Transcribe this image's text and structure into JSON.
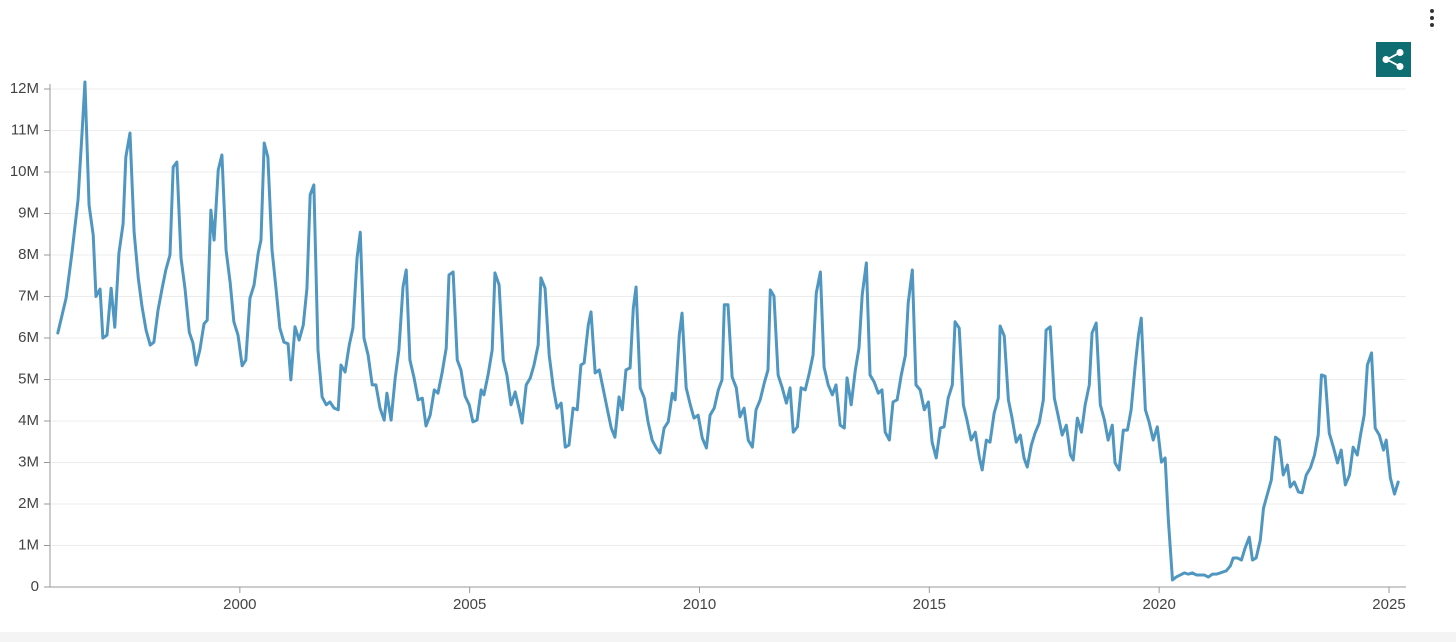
{
  "chart_data": {
    "type": "line",
    "color": "#4f97c0",
    "grid": true,
    "xlim": [
      1995.87,
      2025.37
    ],
    "xticks": [
      2000,
      2005,
      2010,
      2015,
      2020,
      2025
    ],
    "ylim": [
      0,
      12000000
    ],
    "yticks": [
      0,
      {
        "value": 1000000,
        "label": "1M"
      },
      {
        "value": 2000000,
        "label": "2M"
      },
      {
        "value": 3000000,
        "label": "3M"
      },
      {
        "value": 4000000,
        "label": "4M"
      },
      {
        "value": 5000000,
        "label": "5M"
      },
      {
        "value": 6000000,
        "label": "6M"
      },
      {
        "value": 7000000,
        "label": "7M"
      },
      {
        "value": 8000000,
        "label": "8M"
      },
      {
        "value": 9000000,
        "label": "9M"
      },
      {
        "value": 10000000,
        "label": "10M"
      },
      {
        "value": 11000000,
        "label": "11M"
      },
      {
        "value": 12000000,
        "label": "12M"
      }
    ],
    "x": [
      1996.04,
      1996.22,
      1996.35,
      1996.48,
      1996.57,
      1996.63,
      1996.72,
      1996.81,
      1996.87,
      1996.96,
      1997.02,
      1997.11,
      1997.2,
      1997.28,
      1997.37,
      1997.46,
      1997.52,
      1997.61,
      1997.7,
      1997.79,
      1997.87,
      1997.96,
      1998.05,
      1998.13,
      1998.22,
      1998.31,
      1998.39,
      1998.48,
      1998.55,
      1998.63,
      1998.72,
      1998.81,
      1998.9,
      1998.98,
      1999.05,
      1999.13,
      1999.22,
      1999.29,
      1999.37,
      1999.44,
      1999.53,
      1999.61,
      1999.7,
      1999.79,
      1999.87,
      1999.96,
      2000.05,
      2000.13,
      2000.22,
      2000.31,
      2000.4,
      2000.46,
      2000.53,
      2000.61,
      2000.7,
      2000.79,
      2000.87,
      2000.96,
      2001.05,
      2001.11,
      2001.2,
      2001.29,
      2001.38,
      2001.46,
      2001.53,
      2001.61,
      2001.7,
      2001.79,
      2001.88,
      2001.96,
      2002.05,
      2002.14,
      2002.2,
      2002.29,
      2002.38,
      2002.46,
      2002.55,
      2002.62,
      2002.7,
      2002.79,
      2002.88,
      2002.96,
      2003.05,
      2003.14,
      2003.2,
      2003.29,
      2003.38,
      2003.46,
      2003.55,
      2003.62,
      2003.7,
      2003.79,
      2003.88,
      2003.97,
      2004.05,
      2004.14,
      2004.23,
      2004.31,
      2004.4,
      2004.49,
      2004.55,
      2004.64,
      2004.73,
      2004.81,
      2004.9,
      2004.99,
      2005.07,
      2005.16,
      2005.25,
      2005.31,
      2005.4,
      2005.49,
      2005.55,
      2005.64,
      2005.73,
      2005.81,
      2005.9,
      2005.99,
      2006.08,
      2006.14,
      2006.23,
      2006.32,
      2006.4,
      2006.49,
      2006.55,
      2006.64,
      2006.73,
      2006.82,
      2006.9,
      2006.99,
      2007.08,
      2007.16,
      2007.25,
      2007.34,
      2007.42,
      2007.49,
      2007.58,
      2007.64,
      2007.73,
      2007.82,
      2007.9,
      2007.99,
      2008.08,
      2008.16,
      2008.25,
      2008.32,
      2008.4,
      2008.49,
      2008.56,
      2008.62,
      2008.71,
      2008.8,
      2008.88,
      2008.97,
      2009.06,
      2009.14,
      2009.23,
      2009.32,
      2009.41,
      2009.47,
      2009.56,
      2009.62,
      2009.71,
      2009.8,
      2009.88,
      2009.97,
      2010.06,
      2010.15,
      2010.23,
      2010.32,
      2010.41,
      2010.49,
      2010.54,
      2010.62,
      2010.71,
      2010.8,
      2010.88,
      2010.97,
      2011.06,
      2011.15,
      2011.23,
      2011.32,
      2011.41,
      2011.49,
      2011.54,
      2011.62,
      2011.71,
      2011.8,
      2011.89,
      2011.97,
      2012.04,
      2012.13,
      2012.21,
      2012.3,
      2012.39,
      2012.47,
      2012.54,
      2012.63,
      2012.71,
      2012.8,
      2012.89,
      2012.97,
      2013.06,
      2013.15,
      2013.21,
      2013.3,
      2013.39,
      2013.47,
      2013.54,
      2013.63,
      2013.71,
      2013.8,
      2013.89,
      2013.97,
      2014.04,
      2014.13,
      2014.21,
      2014.3,
      2014.39,
      2014.48,
      2014.54,
      2014.63,
      2014.71,
      2014.8,
      2014.89,
      2014.98,
      2015.06,
      2015.15,
      2015.24,
      2015.32,
      2015.41,
      2015.5,
      2015.56,
      2015.65,
      2015.74,
      2015.82,
      2015.91,
      2016.0,
      2016.09,
      2016.15,
      2016.24,
      2016.32,
      2016.41,
      2016.5,
      2016.54,
      2016.63,
      2016.72,
      2016.8,
      2016.89,
      2016.98,
      2017.06,
      2017.13,
      2017.22,
      2017.3,
      2017.39,
      2017.48,
      2017.54,
      2017.63,
      2017.72,
      2017.8,
      2017.89,
      2017.98,
      2018.07,
      2018.13,
      2018.22,
      2018.31,
      2018.39,
      2018.48,
      2018.54,
      2018.63,
      2018.72,
      2018.81,
      2018.89,
      2018.98,
      2019.04,
      2019.13,
      2019.22,
      2019.31,
      2019.39,
      2019.48,
      2019.55,
      2019.61,
      2019.7,
      2019.78,
      2019.87,
      2019.96,
      2020.05,
      2020.13,
      2020.2,
      2020.29,
      2020.37,
      2020.46,
      2020.55,
      2020.63,
      2020.72,
      2020.81,
      2020.89,
      2020.98,
      2021.07,
      2021.16,
      2021.24,
      2021.33,
      2021.46,
      2021.55,
      2021.61,
      2021.7,
      2021.79,
      2021.87,
      2021.96,
      2022.03,
      2022.11,
      2022.2,
      2022.27,
      2022.35,
      2022.44,
      2022.53,
      2022.61,
      2022.7,
      2022.79,
      2022.85,
      2022.94,
      2023.03,
      2023.11,
      2023.2,
      2023.29,
      2023.38,
      2023.46,
      2023.53,
      2023.61,
      2023.7,
      2023.79,
      2023.88,
      2023.96,
      2024.05,
      2024.14,
      2024.22,
      2024.31,
      2024.38,
      2024.46,
      2024.53,
      2024.62,
      2024.7,
      2024.79,
      2024.88,
      2024.94,
      2025.03,
      2025.12,
      2025.2
    ],
    "values": [
      6120000,
      6960000,
      8070000,
      9330000,
      11000000,
      12170000,
      9200000,
      8480000,
      7000000,
      7180000,
      6000000,
      6070000,
      7200000,
      6260000,
      8050000,
      8750000,
      10360000,
      10940000,
      8550000,
      7450000,
      6770000,
      6190000,
      5830000,
      5900000,
      6670000,
      7200000,
      7640000,
      8000000,
      10120000,
      10240000,
      7930000,
      7160000,
      6140000,
      5880000,
      5350000,
      5710000,
      6340000,
      6430000,
      9080000,
      8360000,
      10050000,
      10410000,
      8120000,
      7330000,
      6390000,
      6070000,
      5330000,
      5470000,
      6960000,
      7280000,
      8050000,
      8360000,
      10700000,
      10360000,
      8120000,
      7160000,
      6240000,
      5900000,
      5860000,
      4990000,
      6270000,
      5950000,
      6310000,
      7200000,
      9450000,
      9690000,
      5710000,
      4580000,
      4390000,
      4460000,
      4310000,
      4270000,
      5350000,
      5180000,
      5830000,
      6240000,
      7930000,
      8550000,
      6000000,
      5590000,
      4870000,
      4870000,
      4310000,
      4020000,
      4670000,
      4020000,
      5040000,
      5710000,
      7230000,
      7640000,
      5470000,
      5040000,
      4510000,
      4550000,
      3880000,
      4140000,
      4750000,
      4670000,
      5160000,
      5760000,
      7520000,
      7590000,
      5470000,
      5230000,
      4600000,
      4390000,
      3980000,
      4020000,
      4750000,
      4630000,
      5110000,
      5710000,
      7570000,
      7280000,
      5470000,
      5110000,
      4390000,
      4700000,
      4270000,
      3950000,
      4870000,
      5040000,
      5350000,
      5830000,
      7450000,
      7200000,
      5590000,
      4800000,
      4310000,
      4430000,
      3370000,
      3420000,
      4310000,
      4270000,
      5350000,
      5400000,
      6310000,
      6630000,
      5160000,
      5230000,
      4800000,
      4310000,
      3830000,
      3610000,
      4580000,
      4270000,
      5230000,
      5280000,
      6720000,
      7230000,
      4800000,
      4550000,
      3980000,
      3540000,
      3350000,
      3230000,
      3830000,
      3980000,
      4670000,
      4510000,
      6070000,
      6600000,
      4800000,
      4390000,
      4070000,
      4140000,
      3590000,
      3350000,
      4140000,
      4310000,
      4750000,
      4990000,
      6800000,
      6800000,
      5060000,
      4800000,
      4100000,
      4310000,
      3540000,
      3370000,
      4270000,
      4510000,
      4920000,
      5230000,
      7160000,
      7010000,
      5110000,
      4800000,
      4430000,
      4800000,
      3730000,
      3860000,
      4800000,
      4750000,
      5160000,
      5590000,
      7080000,
      7590000,
      5300000,
      4870000,
      4630000,
      4870000,
      3900000,
      3830000,
      5040000,
      4390000,
      5230000,
      5760000,
      7040000,
      7810000,
      5110000,
      4940000,
      4670000,
      4750000,
      3730000,
      3540000,
      4460000,
      4510000,
      5110000,
      5590000,
      6840000,
      7640000,
      4870000,
      4750000,
      4270000,
      4460000,
      3490000,
      3110000,
      3830000,
      3860000,
      4550000,
      4870000,
      6390000,
      6240000,
      4390000,
      4020000,
      3540000,
      3730000,
      3110000,
      2820000,
      3540000,
      3490000,
      4190000,
      4550000,
      6290000,
      6050000,
      4510000,
      4070000,
      3490000,
      3660000,
      3110000,
      2890000,
      3420000,
      3710000,
      3950000,
      4510000,
      6190000,
      6270000,
      4550000,
      4140000,
      3660000,
      3900000,
      3180000,
      3060000,
      4070000,
      3730000,
      4390000,
      4870000,
      6120000,
      6360000,
      4390000,
      4020000,
      3540000,
      3900000,
      2990000,
      2820000,
      3780000,
      3780000,
      4270000,
      5350000,
      6070000,
      6480000,
      4270000,
      3980000,
      3540000,
      3860000,
      3010000,
      3110000,
      1610000,
      170000,
      240000,
      290000,
      340000,
      310000,
      340000,
      290000,
      290000,
      290000,
      240000,
      310000,
      310000,
      340000,
      390000,
      510000,
      700000,
      700000,
      650000,
      940000,
      1200000,
      650000,
      700000,
      1130000,
      1900000,
      2220000,
      2580000,
      3610000,
      3540000,
      2700000,
      2940000,
      2410000,
      2530000,
      2290000,
      2270000,
      2700000,
      2870000,
      3180000,
      3660000,
      5110000,
      5080000,
      3710000,
      3370000,
      2990000,
      3300000,
      2460000,
      2700000,
      3370000,
      3180000,
      3660000,
      4140000,
      5350000,
      5640000,
      3830000,
      3660000,
      3300000,
      3540000,
      2630000,
      2240000,
      2530000
    ]
  }
}
